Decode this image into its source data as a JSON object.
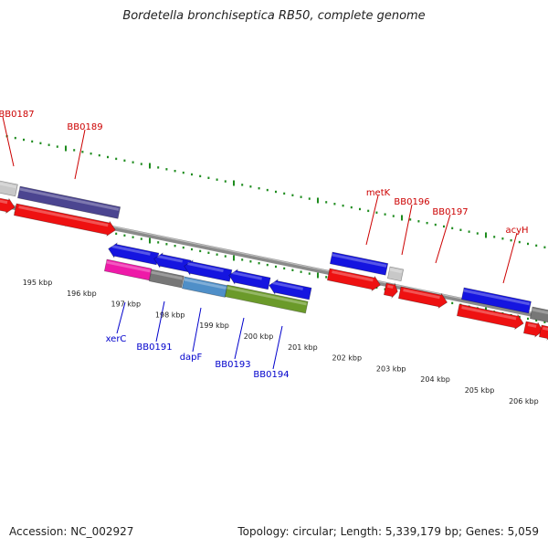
{
  "title": "Bordetella bronchiseptica RB50, complete genome",
  "footer": {
    "accession": "Accession: NC_002927",
    "summary": "Topology: circular; Length: 5,339,179 bp; Genes: 5,059"
  },
  "colors": {
    "backbone": "#8a8a8a",
    "tick": "#1e8c1e",
    "label_forward": "#cc0000",
    "label_reverse": "#0000cc",
    "gene_red": "#ee1111",
    "gene_blue": "#1515e0",
    "gene_purple": "#4b4590",
    "gene_grey": "#777777",
    "gene_lightgrey": "#c8c8c8",
    "gene_magenta": "#ee1aa8",
    "gene_steelblue": "#4f8fc8",
    "gene_olive": "#6b9a2a"
  },
  "scale_labels": [
    "195 kbp",
    "196 kbp",
    "197 kbp",
    "198 kbp",
    "199 kbp",
    "200 kbp",
    "201 kbp",
    "202 kbp",
    "203 kbp",
    "204 kbp",
    "205 kbp",
    "206 kbp"
  ],
  "upper_labels": [
    "BB0187",
    "BB0189",
    "metK",
    "BB0196",
    "BB0197",
    "acyH"
  ],
  "lower_labels": [
    "xerC",
    "BB0191",
    "dapF",
    "BB0193",
    "BB0194"
  ]
}
